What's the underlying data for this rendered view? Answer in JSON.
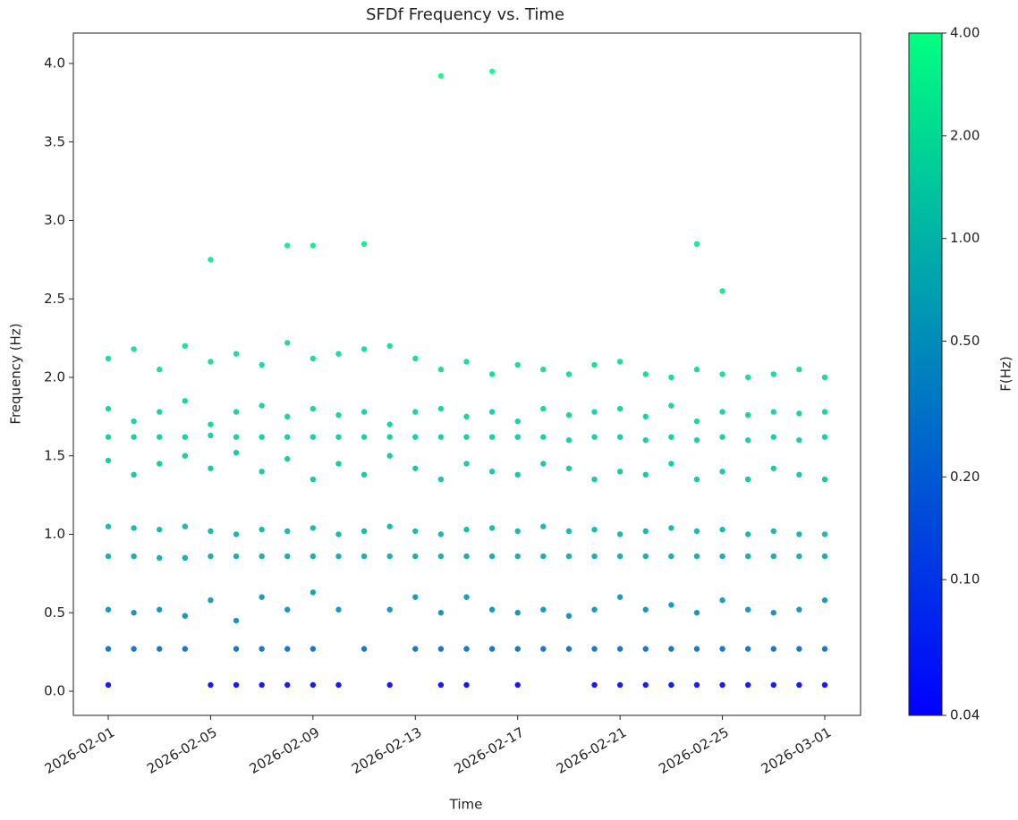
{
  "chart_data": {
    "type": "scatter",
    "title": "SFDf Frequency vs. Time",
    "x_label": "Time",
    "y_label": "Frequency (Hz)",
    "x": [
      "2026-02-01",
      "2026-02-02",
      "2026-02-03",
      "2026-02-04",
      "2026-02-05",
      "2026-02-06",
      "2026-02-07",
      "2026-02-08",
      "2026-02-09",
      "2026-02-10",
      "2026-02-11",
      "2026-02-12",
      "2026-02-13",
      "2026-02-14",
      "2026-02-15",
      "2026-02-16",
      "2026-02-17",
      "2026-02-18",
      "2026-02-19",
      "2026-02-20",
      "2026-02-21",
      "2026-02-22",
      "2026-02-23",
      "2026-02-24",
      "2026-02-25",
      "2026-02-26",
      "2026-02-27",
      "2026-02-28",
      "2026-03-01"
    ],
    "series": [
      {
        "values": [
          2.12,
          2.18,
          2.05,
          2.2,
          2.1,
          2.15,
          2.08,
          2.22,
          2.12,
          2.15,
          2.18,
          2.2,
          2.12,
          2.05,
          2.1,
          2.02,
          2.08,
          2.05,
          2.02,
          2.08,
          2.1,
          2.02,
          2.0,
          2.05,
          2.02,
          2.0,
          2.02,
          2.05,
          2.0
        ]
      },
      {
        "values": [
          1.8,
          1.72,
          1.78,
          1.85,
          1.7,
          1.78,
          1.82,
          1.75,
          1.8,
          1.76,
          1.78,
          1.7,
          1.78,
          1.8,
          1.75,
          1.78,
          1.72,
          1.8,
          1.76,
          1.78,
          1.8,
          1.75,
          1.82,
          1.72,
          1.78,
          1.76,
          1.78,
          1.77,
          1.78
        ]
      },
      {
        "values": [
          1.62,
          1.62,
          1.62,
          1.62,
          1.63,
          1.62,
          1.62,
          1.62,
          1.62,
          1.62,
          1.62,
          1.62,
          1.62,
          1.62,
          1.62,
          1.62,
          1.62,
          1.62,
          1.6,
          1.62,
          1.62,
          1.6,
          1.62,
          1.6,
          1.62,
          1.6,
          1.62,
          1.6,
          1.62
        ]
      },
      {
        "values": [
          1.47,
          1.38,
          1.45,
          1.5,
          1.42,
          1.52,
          1.4,
          1.48,
          1.35,
          1.45,
          1.38,
          1.5,
          1.42,
          1.35,
          1.45,
          1.4,
          1.38,
          1.45,
          1.42,
          1.35,
          1.4,
          1.38,
          1.45,
          1.35,
          1.4,
          1.35,
          1.42,
          1.38,
          1.35
        ]
      },
      {
        "values": [
          1.05,
          1.04,
          1.03,
          1.05,
          1.02,
          1.0,
          1.03,
          1.02,
          1.04,
          1.0,
          1.02,
          1.05,
          1.02,
          1.0,
          1.03,
          1.04,
          1.02,
          1.05,
          1.02,
          1.03,
          1.0,
          1.02,
          1.04,
          1.02,
          1.03,
          1.0,
          1.02,
          1.0,
          1.0
        ]
      },
      {
        "values": [
          0.86,
          0.86,
          0.85,
          0.85,
          0.86,
          0.86,
          0.86,
          0.86,
          0.86,
          0.86,
          0.86,
          0.86,
          0.86,
          0.86,
          0.86,
          0.86,
          0.86,
          0.86,
          0.86,
          0.86,
          0.86,
          0.86,
          0.86,
          0.86,
          0.86,
          0.86,
          0.86,
          0.86,
          0.86
        ]
      },
      {
        "values": [
          0.52,
          0.5,
          0.52,
          0.48,
          0.58,
          0.45,
          0.6,
          0.52,
          0.63,
          0.52,
          null,
          0.52,
          0.6,
          0.5,
          0.6,
          0.52,
          0.5,
          0.52,
          0.48,
          0.52,
          0.6,
          0.52,
          0.55,
          0.5,
          0.58,
          0.52,
          0.5,
          0.52,
          0.58
        ]
      },
      {
        "values": [
          0.27,
          0.27,
          0.27,
          0.27,
          null,
          0.27,
          0.27,
          0.27,
          0.27,
          null,
          0.27,
          null,
          0.27,
          0.27,
          0.27,
          0.27,
          0.27,
          0.27,
          0.27,
          0.27,
          0.27,
          0.27,
          0.27,
          0.27,
          0.27,
          0.27,
          0.27,
          0.27,
          0.27
        ]
      },
      {
        "values": [
          0.04,
          null,
          null,
          null,
          0.04,
          0.04,
          0.04,
          0.04,
          0.04,
          0.04,
          null,
          0.04,
          null,
          0.04,
          0.04,
          null,
          0.04,
          null,
          null,
          0.04,
          0.04,
          0.04,
          0.04,
          0.04,
          0.04,
          0.04,
          0.04,
          0.04,
          0.04
        ]
      },
      {
        "values": [
          null,
          null,
          null,
          null,
          2.75,
          null,
          null,
          2.84,
          2.84,
          null,
          2.85,
          null,
          null,
          3.92,
          null,
          3.95,
          null,
          null,
          null,
          null,
          null,
          null,
          null,
          2.85,
          2.55,
          null,
          null,
          null,
          null
        ]
      }
    ],
    "xlim": [
      "2026-02-01",
      "2026-03-01"
    ],
    "xticks": [
      "2026-02-01",
      "2026-02-05",
      "2026-02-09",
      "2026-02-13",
      "2026-02-17",
      "2026-02-21",
      "2026-02-25",
      "2026-03-01"
    ],
    "ylim": [
      0,
      4
    ],
    "yticks": [
      {
        "value": 0,
        "label": "0.0"
      },
      0.5,
      {
        "value": 1,
        "label": "1.0"
      },
      1.5,
      {
        "value": 2,
        "label": "2.0"
      },
      2.5,
      {
        "value": 3,
        "label": "3.0"
      },
      3.5,
      {
        "value": 4,
        "label": "4.0"
      }
    ],
    "colorbar": {
      "label": "F(Hz)",
      "scale": "log",
      "lim": [
        0.04,
        4
      ],
      "colormap": [
        "#0000ff",
        "#00ff80"
      ],
      "ticks": [
        {
          "value": 0.04,
          "label": "0.04"
        },
        {
          "value": 0.1,
          "label": "0.10"
        },
        {
          "value": 0.2,
          "label": "0.20"
        },
        {
          "value": 0.5,
          "label": "0.50"
        },
        {
          "value": 1,
          "label": "1.00"
        },
        {
          "value": 2,
          "label": "2.00"
        },
        {
          "value": 4,
          "label": "4.00"
        }
      ]
    }
  }
}
